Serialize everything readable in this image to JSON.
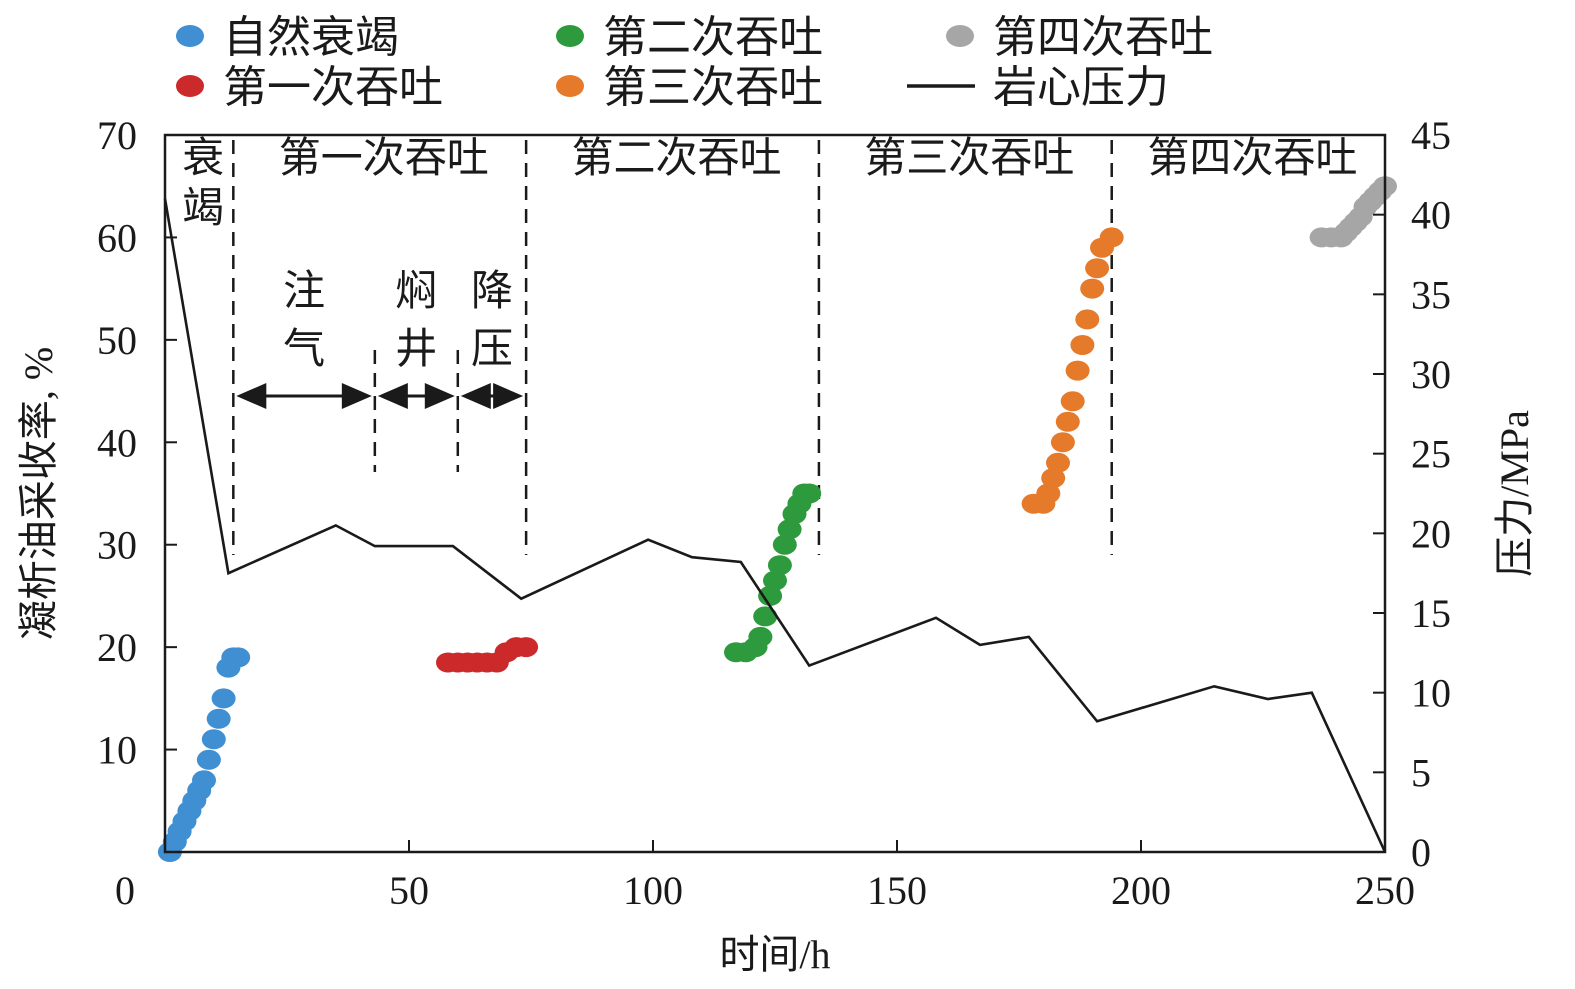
{
  "chart_data": {
    "type": "scatter",
    "xlabel": "时间/h",
    "ylabel": "凝析油采收率, %",
    "y2label": "压力/MPa",
    "xlim": [
      0,
      250
    ],
    "ylim": [
      0,
      70
    ],
    "y2lim": [
      0,
      45
    ],
    "xticks": [
      0,
      50,
      100,
      150,
      200,
      250
    ],
    "yticks": [
      10,
      20,
      30,
      40,
      50,
      60,
      70
    ],
    "y2ticks": [
      0,
      5,
      10,
      15,
      20,
      25,
      30,
      35,
      40,
      45
    ],
    "legend": [
      {
        "label": "自然衰竭",
        "kind": "dot",
        "color": "#3f8fd2"
      },
      {
        "label": "第二次吞吐",
        "kind": "dot",
        "color": "#2e9a3e"
      },
      {
        "label": "第四次吞吐",
        "kind": "dot",
        "color": "#a6a6a6"
      },
      {
        "label": "第一次吞吐",
        "kind": "dot",
        "color": "#cc2a2a"
      },
      {
        "label": "第三次吞吐",
        "kind": "dot",
        "color": "#e57a2b"
      },
      {
        "label": "岩心压力",
        "kind": "line",
        "color": "#1a1a1a"
      }
    ],
    "phases": [
      {
        "label": "衰竭",
        "x_start": 0,
        "x_end": 14
      },
      {
        "label": "第一次吞吐",
        "x_start": 14,
        "x_end": 74
      },
      {
        "label": "第二次吞吐",
        "x_start": 74,
        "x_end": 134
      },
      {
        "label": "第三次吞吐",
        "x_start": 134,
        "x_end": 194
      },
      {
        "label": "第四次吞吐",
        "x_start": 194,
        "x_end": 250
      }
    ],
    "stage_labels": [
      {
        "label": "注气",
        "x_start": 14,
        "x_end": 43
      },
      {
        "label": "焖井",
        "x_start": 43,
        "x_end": 60
      },
      {
        "label": "降压",
        "x_start": 60,
        "x_end": 74
      }
    ],
    "series": [
      {
        "name": "自然衰竭",
        "color": "#3f8fd2",
        "axis": "left",
        "x": [
          1,
          2,
          3,
          4,
          5,
          6,
          7,
          8,
          9,
          10,
          11,
          12,
          13,
          14,
          15
        ],
        "y": [
          0,
          1,
          2,
          3,
          4,
          5,
          6,
          7,
          9,
          11,
          13,
          15,
          18,
          19,
          19
        ]
      },
      {
        "name": "第一次吞吐",
        "color": "#cc2a2a",
        "axis": "left",
        "x": [
          58,
          60,
          62,
          64,
          66,
          68,
          70,
          72,
          74
        ],
        "y": [
          18.5,
          18.5,
          18.5,
          18.5,
          18.5,
          18.5,
          19.5,
          20,
          20
        ]
      },
      {
        "name": "第二次吞吐",
        "color": "#2e9a3e",
        "axis": "left",
        "x": [
          117,
          119,
          121,
          122,
          123,
          124,
          125,
          126,
          127,
          128,
          129,
          130,
          131,
          132
        ],
        "y": [
          19.5,
          19.5,
          20,
          21,
          23,
          25,
          26.5,
          28,
          30,
          31.5,
          33,
          34,
          35,
          35
        ]
      },
      {
        "name": "第三次吞吐",
        "color": "#e57a2b",
        "axis": "left",
        "x": [
          178,
          180,
          181,
          182,
          183,
          184,
          185,
          186,
          187,
          188,
          189,
          190,
          191,
          192,
          194
        ],
        "y": [
          34,
          34,
          35,
          36.5,
          38,
          40,
          42,
          44,
          47,
          49.5,
          52,
          55,
          57,
          59,
          60
        ]
      },
      {
        "name": "第四次吞吐",
        "color": "#a6a6a6",
        "axis": "left",
        "x": [
          237,
          239,
          241,
          242,
          243,
          244,
          245,
          246,
          247,
          248,
          249,
          250
        ],
        "y": [
          60,
          60,
          60,
          60.5,
          61,
          61.5,
          62,
          63,
          63.5,
          64,
          64.5,
          65
        ]
      },
      {
        "name": "岩心压力",
        "color": "#1a1a1a",
        "axis": "right",
        "kind": "line",
        "x": [
          0,
          13,
          35,
          43,
          59,
          73,
          99,
          108,
          118,
          132,
          158,
          167,
          177,
          191,
          215,
          226,
          235,
          250
        ],
        "y": [
          41,
          17.5,
          20.5,
          19.2,
          19.2,
          15.9,
          19.6,
          18.5,
          18.2,
          11.7,
          14.7,
          13,
          13.5,
          8.2,
          10.4,
          9.6,
          10,
          0
        ]
      }
    ]
  }
}
